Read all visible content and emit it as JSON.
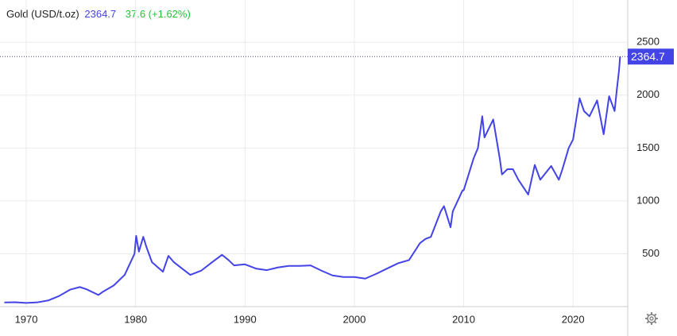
{
  "chart_data": {
    "type": "line",
    "title": "Gold (USD/t.oz)",
    "change": "37.6 (+1.62%)",
    "xlim": [
      1967.6,
      2025
    ],
    "ylim": [
      0,
      2900
    ],
    "xticks": [
      1970,
      1980,
      1990,
      2000,
      2010,
      2020
    ],
    "yticks": [
      500,
      1000,
      1500,
      2000,
      2500
    ],
    "grid": true,
    "series": [
      {
        "name": "Gold",
        "color": "#4343e6",
        "x": [
          1968,
          1969,
          1970,
          1971,
          1972,
          1973,
          1974,
          1974.9,
          1975.5,
          1976.6,
          1977,
          1978,
          1979,
          1979.9,
          1980.05,
          1980.3,
          1980.7,
          1981,
          1981.5,
          1982.5,
          1983,
          1983.5,
          1984,
          1985,
          1986,
          1987,
          1987.9,
          1988.5,
          1989,
          1990,
          1991,
          1992,
          1993,
          1994,
          1995,
          1996,
          1997,
          1998,
          1999,
          2000,
          2001,
          2002,
          2003,
          2004,
          2005,
          2006,
          2006.5,
          2007,
          2007.9,
          2008.2,
          2008.8,
          2009,
          2009.9,
          2010,
          2010.9,
          2011.3,
          2011.7,
          2011.9,
          2012.7,
          2013.3,
          2013.5,
          2014,
          2014.5,
          2015,
          2015.9,
          2016.5,
          2017,
          2018,
          2018.7,
          2019,
          2019.6,
          2020,
          2020.6,
          2021,
          2021.5,
          2022.2,
          2022.8,
          2023.3,
          2023.8,
          2024.0,
          2024.2,
          2024.3
        ],
        "values": [
          39,
          41,
          35,
          40,
          58,
          100,
          160,
          185,
          165,
          110,
          140,
          200,
          300,
          500,
          670,
          520,
          660,
          560,
          420,
          330,
          480,
          420,
          380,
          300,
          340,
          420,
          490,
          440,
          390,
          400,
          360,
          345,
          370,
          385,
          385,
          390,
          340,
          295,
          280,
          280,
          265,
          310,
          360,
          410,
          440,
          600,
          640,
          660,
          900,
          950,
          750,
          900,
          1100,
          1100,
          1400,
          1500,
          1800,
          1600,
          1770,
          1400,
          1250,
          1300,
          1300,
          1200,
          1060,
          1340,
          1200,
          1330,
          1200,
          1290,
          1500,
          1580,
          1970,
          1850,
          1800,
          1950,
          1630,
          1990,
          1850,
          2050,
          2230,
          2364.7
        ]
      }
    ]
  }
}
